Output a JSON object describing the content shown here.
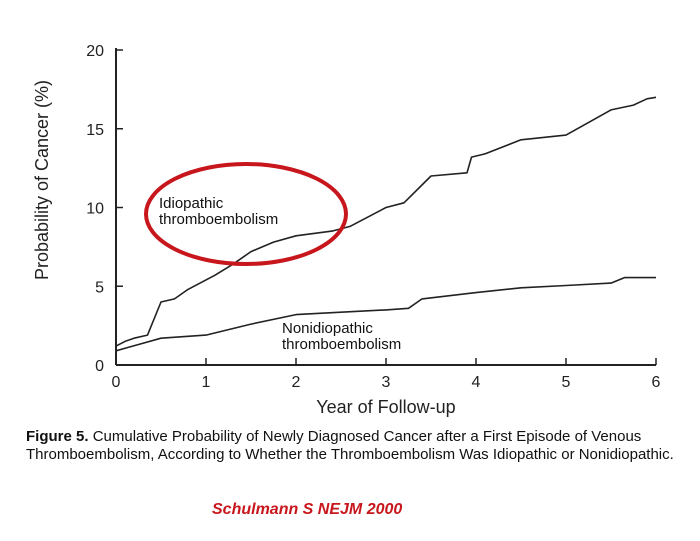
{
  "chart_data": {
    "type": "line",
    "ylabel": "Probability of Cancer (%)",
    "xlabel": "Year of Follow-up",
    "xlim": [
      0,
      6
    ],
    "ylim": [
      0,
      20
    ],
    "x_ticks": [
      0,
      1,
      2,
      3,
      4,
      5,
      6
    ],
    "y_ticks": [
      0,
      5,
      10,
      15,
      20
    ],
    "grid": false,
    "series": [
      {
        "name": "Idiopathic thromboembolism",
        "points": [
          [
            0,
            1.2
          ],
          [
            0.1,
            1.5
          ],
          [
            0.2,
            1.7
          ],
          [
            0.35,
            1.9
          ],
          [
            0.5,
            4.0
          ],
          [
            0.65,
            4.2
          ],
          [
            0.8,
            4.8
          ],
          [
            1.0,
            5.4
          ],
          [
            1.1,
            5.7
          ],
          [
            1.3,
            6.4
          ],
          [
            1.5,
            7.2
          ],
          [
            1.75,
            7.8
          ],
          [
            2.0,
            8.2
          ],
          [
            2.4,
            8.5
          ],
          [
            2.6,
            8.8
          ],
          [
            3.0,
            10.0
          ],
          [
            3.2,
            10.3
          ],
          [
            3.5,
            12.0
          ],
          [
            3.9,
            12.2
          ],
          [
            3.95,
            13.2
          ],
          [
            4.1,
            13.4
          ],
          [
            4.5,
            14.3
          ],
          [
            5.0,
            14.6
          ],
          [
            5.5,
            16.2
          ],
          [
            5.75,
            16.5
          ],
          [
            5.9,
            16.9
          ],
          [
            6.0,
            17.0
          ]
        ]
      },
      {
        "name": "Nonidiopathic thromboembolism",
        "points": [
          [
            0,
            0.9
          ],
          [
            0.25,
            1.3
          ],
          [
            0.5,
            1.7
          ],
          [
            1.0,
            1.9
          ],
          [
            1.5,
            2.6
          ],
          [
            2.0,
            3.2
          ],
          [
            2.5,
            3.35
          ],
          [
            3.0,
            3.5
          ],
          [
            3.25,
            3.6
          ],
          [
            3.4,
            4.2
          ],
          [
            4.0,
            4.6
          ],
          [
            4.5,
            4.9
          ],
          [
            5.0,
            5.05
          ],
          [
            5.5,
            5.2
          ],
          [
            5.65,
            5.55
          ],
          [
            6.0,
            5.55
          ]
        ]
      }
    ],
    "highlight": {
      "target": "Idiopathic thromboembolism",
      "shape": "ellipse",
      "color": "#c8161d"
    }
  },
  "caption": {
    "label": "Figure 5.",
    "text": "Cumulative Probability of Newly Diagnosed Cancer after a First Episode of Venous Thromboembolism, According to Whether the Thromboembolism Was Idiopathic or Nonidiopathic."
  },
  "citation": "Schulmann S NEJM 2000"
}
